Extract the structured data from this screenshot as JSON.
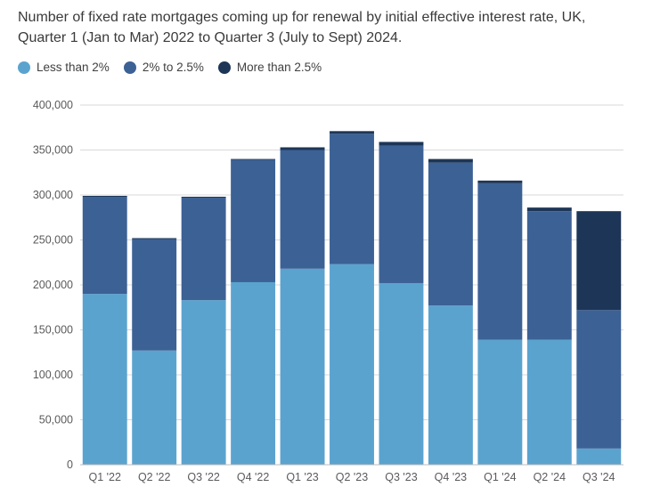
{
  "title": "Number of fixed rate mortgages coming up for renewal by initial effective interest rate, UK, Quarter 1 (Jan to Mar) 2022 to Quarter 3 (July to Sept) 2024.",
  "colors": {
    "less_than_2": "#5ba3cf",
    "two_to_2_5": "#3c6195",
    "more_than_2_5": "#1d3657",
    "grid": "#d9d9d9",
    "axis": "#bdbdbd"
  },
  "chart_data": {
    "type": "bar",
    "stacked": true,
    "categories": [
      "Q1 '22",
      "Q2 '22",
      "Q3 '22",
      "Q4 '22",
      "Q1 '23",
      "Q2 '23",
      "Q3 '23",
      "Q4 '23",
      "Q1 '24",
      "Q2 '24",
      "Q3 '24"
    ],
    "series": [
      {
        "name": "Less than 2%",
        "color": "#5ba3cf",
        "values": [
          190000,
          127000,
          183000,
          203000,
          218000,
          223000,
          202000,
          177000,
          139000,
          139000,
          18000
        ]
      },
      {
        "name": "2% to 2.5%",
        "color": "#3c6195",
        "values": [
          108000,
          124000,
          114000,
          136000,
          132000,
          145000,
          153000,
          159000,
          174000,
          143000,
          154000
        ]
      },
      {
        "name": "More than 2.5%",
        "color": "#1d3657",
        "values": [
          1000,
          1000,
          1000,
          1000,
          3000,
          3000,
          4000,
          4000,
          3000,
          4000,
          110000
        ]
      }
    ],
    "ylim": [
      0,
      400000
    ],
    "yticks": [
      0,
      50000,
      100000,
      150000,
      200000,
      250000,
      300000,
      350000,
      400000
    ],
    "ytick_labels": [
      "0",
      "50,000",
      "100,000",
      "150,000",
      "200,000",
      "250,000",
      "300,000",
      "350,000",
      "400,000"
    ],
    "grid": true,
    "legend_position": "top-left"
  }
}
